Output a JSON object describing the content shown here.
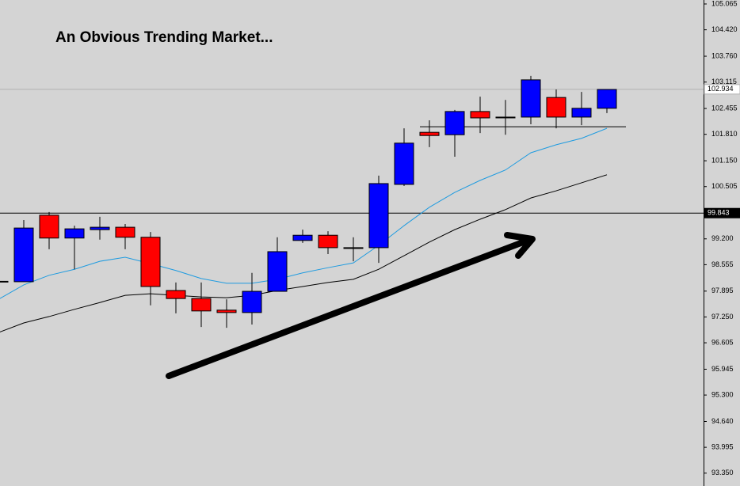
{
  "chart_data": {
    "type": "candlestick",
    "title": "An Obvious Trending Market...",
    "open": [
      98.13,
      98.13,
      99.79,
      99.22,
      99.43,
      99.49,
      99.24,
      97.91,
      97.71,
      97.42,
      97.36,
      97.89,
      99.16,
      99.29,
      98.98,
      98.98,
      100.56,
      101.86,
      101.8,
      102.38,
      102.24,
      102.24,
      102.73,
      102.24,
      102.46
    ],
    "high": [
      98.15,
      99.67,
      99.87,
      99.53,
      99.75,
      99.57,
      99.37,
      98.11,
      98.11,
      97.69,
      98.35,
      99.24,
      99.43,
      99.39,
      99.24,
      100.78,
      101.96,
      102.16,
      102.42,
      102.75,
      102.67,
      103.27,
      102.93,
      102.87,
      102.93
    ],
    "low": [
      98.11,
      98.13,
      98.94,
      98.44,
      99.18,
      98.94,
      97.54,
      97.34,
      97.0,
      96.98,
      97.06,
      97.89,
      99.1,
      98.82,
      98.64,
      98.6,
      100.52,
      101.49,
      101.25,
      101.84,
      101.8,
      102.06,
      101.96,
      102.04,
      102.34
    ],
    "close": [
      98.14,
      99.47,
      99.22,
      99.45,
      99.49,
      99.24,
      98.01,
      97.71,
      97.4,
      97.36,
      97.89,
      98.88,
      99.29,
      98.98,
      98.98,
      100.58,
      101.59,
      101.78,
      102.38,
      102.22,
      102.24,
      103.17,
      102.24,
      102.46,
      102.93
    ],
    "up_color": "#0000ff",
    "down_color": "#ff0000",
    "series": [
      {
        "color": "#1e9be0",
        "values": [
          97.69,
          98.05,
          98.29,
          98.44,
          98.64,
          98.74,
          98.58,
          98.41,
          98.21,
          98.09,
          98.09,
          98.19,
          98.35,
          98.48,
          98.6,
          99.04,
          99.53,
          99.99,
          100.36,
          100.66,
          100.92,
          101.35,
          101.55,
          101.71,
          101.96
        ]
      },
      {
        "color": "#000000",
        "values": [
          96.86,
          97.1,
          97.26,
          97.44,
          97.61,
          97.79,
          97.83,
          97.79,
          97.75,
          97.73,
          97.79,
          97.91,
          98.01,
          98.11,
          98.19,
          98.44,
          98.78,
          99.12,
          99.43,
          99.69,
          99.93,
          100.22,
          100.4,
          100.6,
          100.8
        ]
      }
    ],
    "hlines": [
      {
        "value": 99.843,
        "color": "#000000"
      },
      {
        "value": 102.934,
        "color": "#b0b0b0"
      }
    ],
    "level": {
      "value": 102.0,
      "from": 17,
      "to": 24
    },
    "ylim": [
      93.029,
      105.164
    ],
    "yticks": [
      105.065,
      {
        "value": 104.42,
        "label": "104.420"
      },
      {
        "value": 103.76,
        "label": "103.760"
      },
      103.115,
      102.455,
      {
        "value": 101.81,
        "label": "101.810"
      },
      {
        "value": 101.15,
        "label": "101.150"
      },
      100.505,
      {
        "value": 99.2,
        "label": "99.200"
      },
      98.555,
      97.895,
      {
        "value": 97.25,
        "label": "97.250"
      },
      96.605,
      95.945,
      {
        "value": 95.3,
        "label": "95.300"
      },
      {
        "value": 94.64,
        "label": "94.640"
      },
      93.995,
      {
        "value": 93.35,
        "label": "93.350"
      }
    ]
  }
}
